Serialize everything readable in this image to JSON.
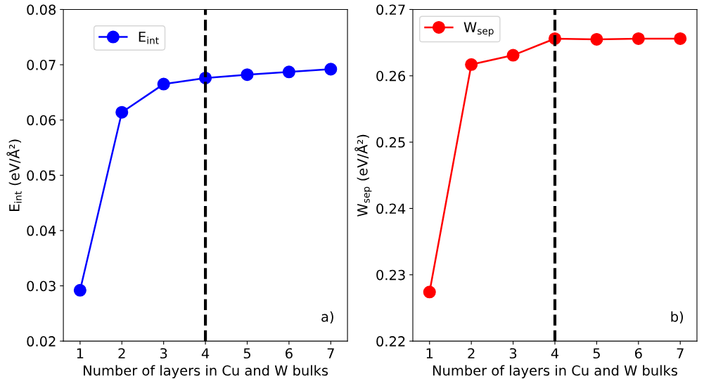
{
  "chart_data": [
    {
      "type": "line",
      "xlabel": "Number of layers in Cu and W bulks",
      "ylabel": "E$_{int}$ (eV/Å²)",
      "x": [
        1,
        2,
        3,
        4,
        5,
        6,
        7
      ],
      "series": [
        {
          "name": "E$_{int}$",
          "color": "#0000ff",
          "values": [
            0.0292,
            0.0614,
            0.0665,
            0.0676,
            0.0682,
            0.0687,
            0.0692
          ]
        }
      ],
      "marker": "circle",
      "line_style": "solid",
      "legend": "top left",
      "grid": false,
      "xlim": [
        0.6,
        7.4
      ],
      "xticks": [
        1,
        2,
        3,
        4,
        5,
        6,
        7
      ],
      "ylim": [
        0.02,
        0.08
      ],
      "yticks": [
        0.02,
        0.03,
        0.04,
        0.05,
        0.06,
        0.07,
        0.08
      ],
      "ref_lines": [
        {
          "axis": "x",
          "value": 4,
          "color": "#000000",
          "line_style": "dashed"
        }
      ],
      "annotations": [
        "a)"
      ]
    },
    {
      "type": "line",
      "xlabel": "Number of layers in Cu and W bulks",
      "ylabel": "W$_{sep}$ (eV/Å²)",
      "x": [
        1,
        2,
        3,
        4,
        5,
        6,
        7
      ],
      "series": [
        {
          "name": "W$_{sep}$",
          "color": "#ff0000",
          "values": [
            0.2274,
            0.2617,
            0.2631,
            0.2656,
            0.2655,
            0.2656,
            0.2656
          ]
        }
      ],
      "marker": "circle",
      "line_style": "solid",
      "legend": "top left",
      "grid": false,
      "xlim": [
        0.6,
        7.4
      ],
      "xticks": [
        1,
        2,
        3,
        4,
        5,
        6,
        7
      ],
      "ylim": [
        0.22,
        0.27
      ],
      "yticks": [
        0.22,
        0.23,
        0.24,
        0.25,
        0.26,
        0.27
      ],
      "ref_lines": [
        {
          "axis": "x",
          "value": 4,
          "color": "#000000",
          "line_style": "dashed"
        }
      ],
      "annotations": [
        "b)"
      ]
    }
  ]
}
